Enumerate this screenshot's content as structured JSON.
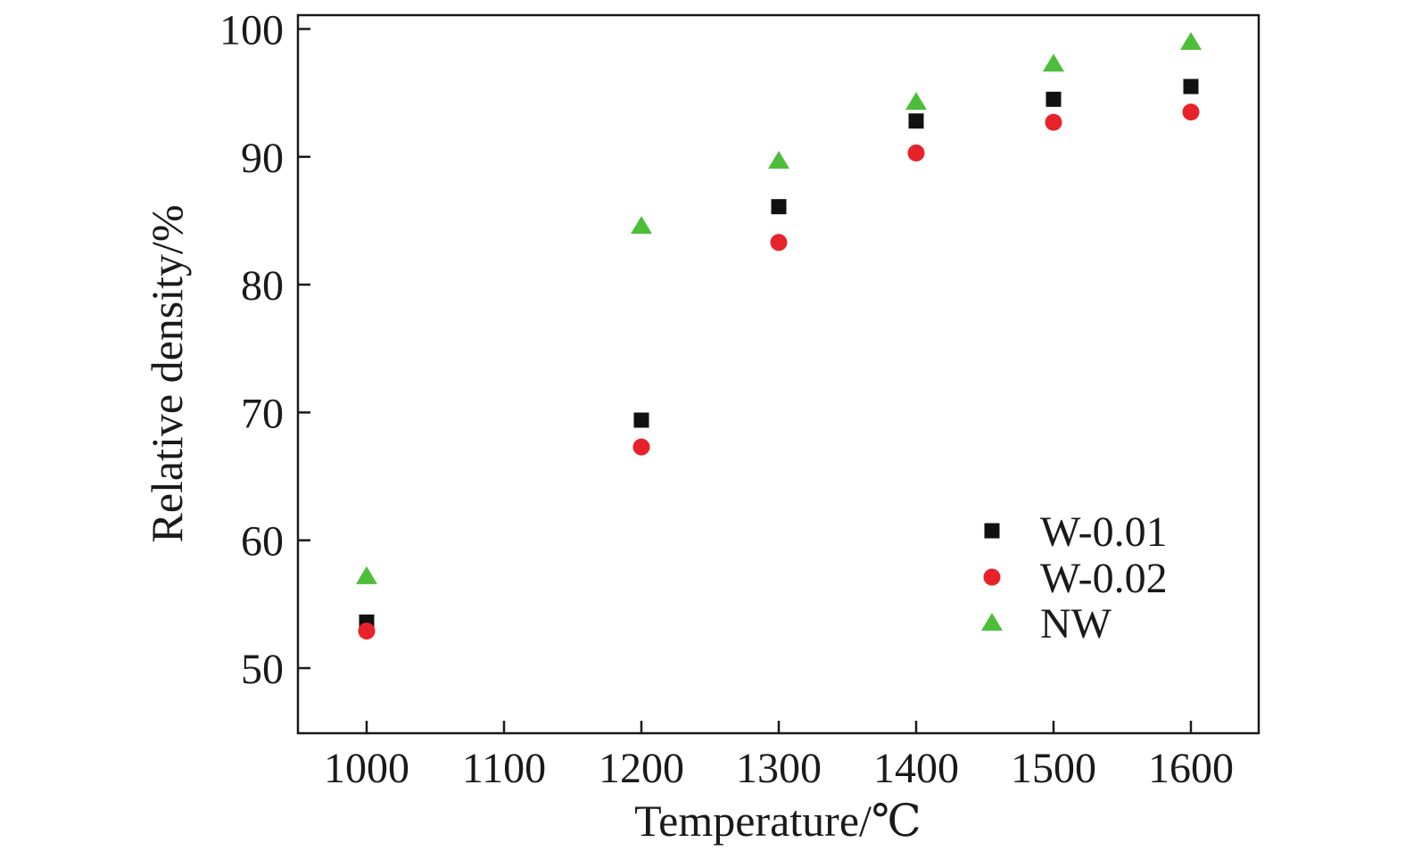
{
  "chart_data": {
    "type": "scatter",
    "title": "",
    "xlabel": "Temperature/℃",
    "ylabel": "Relative density/%",
    "xlim": [
      950,
      1650
    ],
    "ylim": [
      45,
      101
    ],
    "x_ticks": [
      1000,
      1100,
      1200,
      1300,
      1400,
      1500,
      1600
    ],
    "y_ticks": [
      50,
      60,
      70,
      80,
      90,
      100
    ],
    "x_tick_labels": [
      "1000",
      "1100",
      "1200",
      "1300",
      "1400",
      "1500",
      "1600"
    ],
    "y_tick_labels": [
      "50",
      "60",
      "70",
      "80",
      "90",
      "100"
    ],
    "grid": false,
    "legend_position": "lower-right",
    "series": [
      {
        "name": "W-0.01",
        "marker": "square",
        "color": "#111111",
        "x": [
          1000,
          1200,
          1300,
          1400,
          1500,
          1600
        ],
        "y": [
          53.6,
          69.4,
          86.1,
          92.8,
          94.5,
          95.5
        ]
      },
      {
        "name": "W-0.02",
        "marker": "circle",
        "color": "#e8222b",
        "x": [
          1000,
          1200,
          1300,
          1400,
          1500,
          1600
        ],
        "y": [
          52.9,
          67.3,
          83.3,
          90.3,
          92.7,
          93.5
        ]
      },
      {
        "name": "NW",
        "marker": "triangle",
        "color": "#4dbd3a",
        "x": [
          1000,
          1200,
          1300,
          1400,
          1500,
          1600
        ],
        "y": [
          57.2,
          84.6,
          89.7,
          94.3,
          97.3,
          99.0
        ]
      }
    ]
  }
}
